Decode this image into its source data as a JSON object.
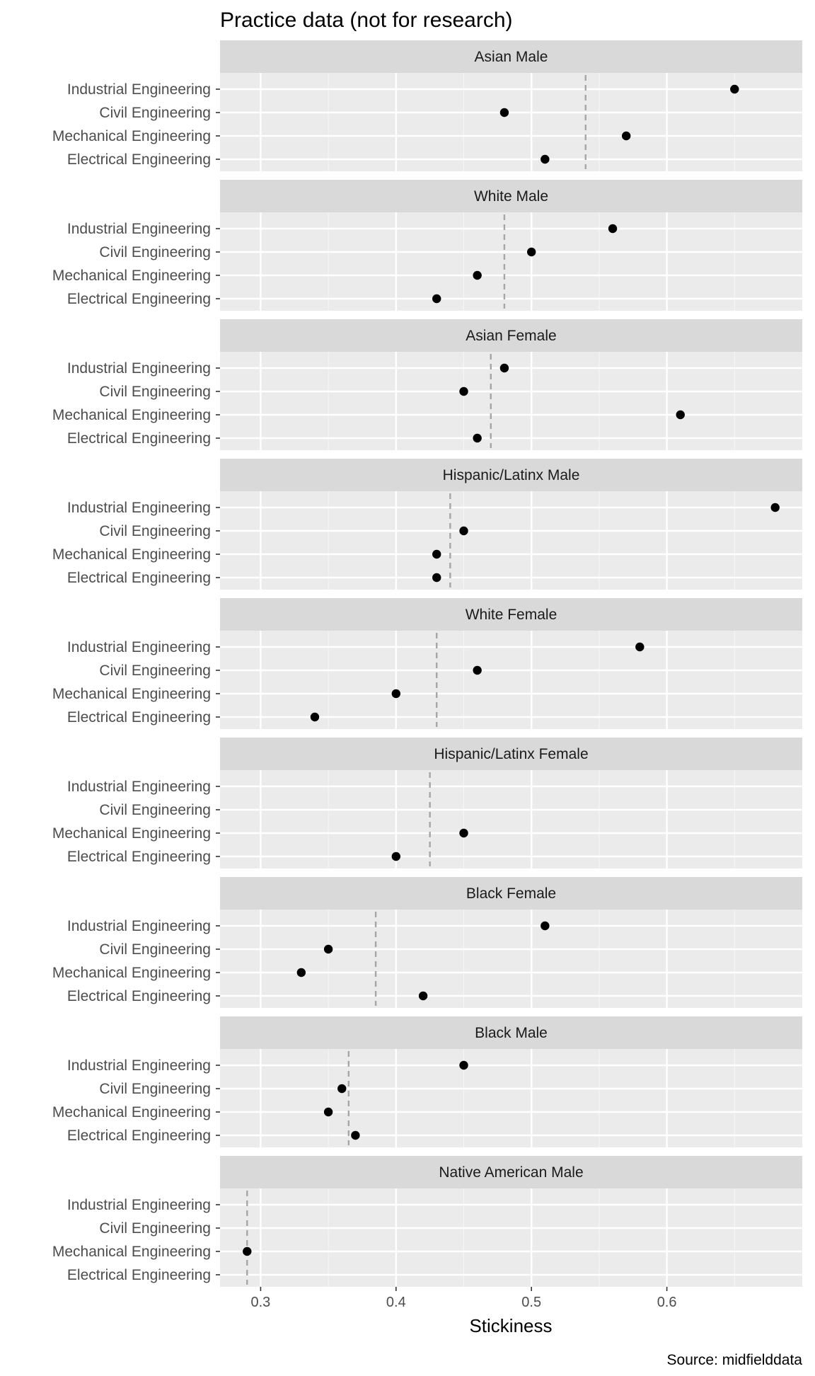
{
  "chart_data": {
    "type": "scatter",
    "title": "Practice data (not for research)",
    "xlabel": "Stickiness",
    "ylabel": "",
    "caption": "Source: midfielddata",
    "xlim": [
      0.27,
      0.7
    ],
    "x_ticks": [
      "0.3",
      "0.4",
      "0.5",
      "0.6"
    ],
    "x_tick_values": [
      0.3,
      0.4,
      0.5,
      0.6
    ],
    "categories": [
      "Industrial Engineering",
      "Civil Engineering",
      "Mechanical Engineering",
      "Electrical Engineering"
    ],
    "grid": true,
    "panels": [
      {
        "name": "Asian Male",
        "median": 0.54,
        "values": [
          0.65,
          0.48,
          0.57,
          0.51
        ]
      },
      {
        "name": "White Male",
        "median": 0.48,
        "values": [
          0.56,
          0.5,
          0.46,
          0.43
        ]
      },
      {
        "name": "Asian Female",
        "median": 0.47,
        "values": [
          0.48,
          0.45,
          0.61,
          0.46
        ]
      },
      {
        "name": "Hispanic/Latinx Male",
        "median": 0.44,
        "values": [
          0.68,
          0.45,
          0.43,
          0.43
        ]
      },
      {
        "name": "White Female",
        "median": 0.43,
        "values": [
          0.58,
          0.46,
          0.4,
          0.34
        ]
      },
      {
        "name": "Hispanic/Latinx Female",
        "median": 0.425,
        "values": [
          null,
          null,
          0.45,
          0.4
        ]
      },
      {
        "name": "Black Female",
        "median": 0.385,
        "values": [
          0.51,
          0.35,
          0.33,
          0.42
        ]
      },
      {
        "name": "Black Male",
        "median": 0.365,
        "values": [
          0.45,
          0.36,
          0.35,
          0.37
        ]
      },
      {
        "name": "Native American Male",
        "median": 0.29,
        "values": [
          null,
          null,
          0.29,
          null
        ]
      }
    ]
  },
  "colors": {
    "panel_bg": "#ebebeb",
    "strip_bg": "#d9d9d9",
    "grid_major": "#ffffff",
    "point": "#000000",
    "median_line": "#a6a6a6"
  }
}
